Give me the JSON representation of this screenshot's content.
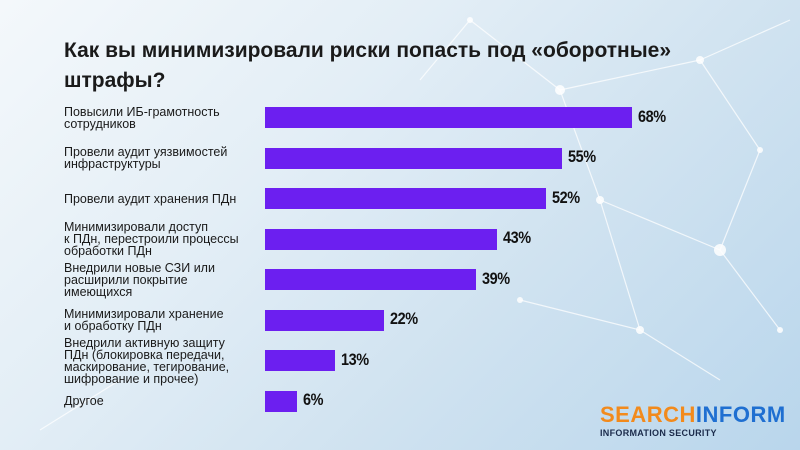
{
  "chart_data": {
    "type": "bar",
    "title": "Как вы минимизировали риски попасть под «оборотные» штрафы?",
    "categories": [
      "Повысили ИБ-грамотность\nсотрудников",
      "Провели аудит уязвимостей\nинфраструктуры",
      "Провели аудит хранения ПДн",
      "Минимизировали доступ\nк ПДн, перестроили процессы\nобработки ПДн",
      "Внедрили новые СЗИ или\nрасширили покрытие\nимеющихся",
      "Минимизировали хранение\nи обработку ПДн",
      "Внедрили активную защиту\nПДн (блокировка передачи,\nмаскирование, тегирование,\nшифрование и прочее)",
      "Другое"
    ],
    "values": [
      68,
      55,
      52,
      43,
      39,
      22,
      13,
      6
    ],
    "value_labels": [
      "68%",
      "55%",
      "52%",
      "43%",
      "39%",
      "22%",
      "13%",
      "6%"
    ],
    "orientation": "horizontal",
    "bar_color": "#6c1ff0"
  },
  "logo": {
    "part1": "SEARCH",
    "part2": "INFORM",
    "subtitle": "INFORMATION SECURITY",
    "color1": "#f28a1c",
    "color2": "#1f6fd1"
  }
}
